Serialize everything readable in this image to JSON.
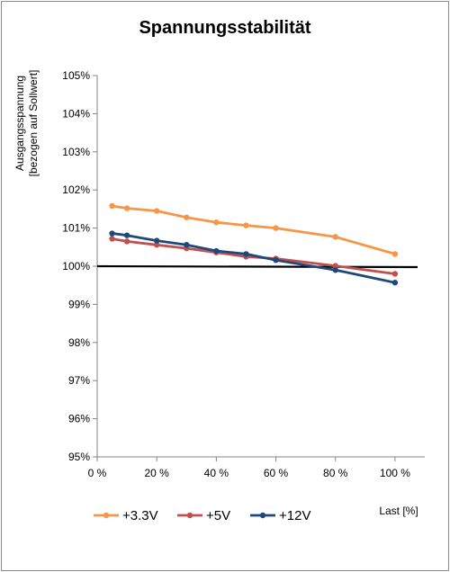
{
  "chart_data": {
    "type": "line",
    "title": "Spannungsstabilität",
    "ylabel_line1": "Ausgangsspannung",
    "ylabel_line2": "[bezogen auf Sollwert]",
    "xlabel": "Last [%]",
    "xlim": [
      0,
      110
    ],
    "ylim": [
      95,
      105
    ],
    "x_ticks": [
      0,
      20,
      40,
      60,
      80,
      100
    ],
    "x_tick_labels": [
      "0 %",
      "20 %",
      "40 %",
      "60 %",
      "80 %",
      "100 %"
    ],
    "y_ticks": [
      95,
      96,
      97,
      98,
      99,
      100,
      101,
      102,
      103,
      104,
      105
    ],
    "y_tick_labels": [
      "95%",
      "96%",
      "97%",
      "98%",
      "99%",
      "100%",
      "101%",
      "102%",
      "103%",
      "104%",
      "105%"
    ],
    "grid": false,
    "legend_position": "bottom",
    "reference_line": {
      "y": 100,
      "color": "#000000"
    },
    "series": [
      {
        "name": "+3.3V",
        "color": "#f79646",
        "x": [
          5,
          10,
          20,
          30,
          40,
          50,
          60,
          80,
          100
        ],
        "y": [
          101.58,
          101.52,
          101.45,
          101.28,
          101.15,
          101.07,
          101.0,
          100.77,
          100.32
        ]
      },
      {
        "name": "+5V",
        "color": "#c0504d",
        "x": [
          5,
          10,
          20,
          30,
          40,
          50,
          60,
          80,
          100
        ],
        "y": [
          100.72,
          100.65,
          100.56,
          100.47,
          100.36,
          100.25,
          100.2,
          100.01,
          99.8
        ]
      },
      {
        "name": "+12V",
        "color": "#1f497d",
        "x": [
          5,
          10,
          20,
          30,
          40,
          50,
          60,
          80,
          100
        ],
        "y": [
          100.86,
          100.81,
          100.67,
          100.56,
          100.4,
          100.32,
          100.16,
          99.9,
          99.57
        ]
      }
    ]
  }
}
